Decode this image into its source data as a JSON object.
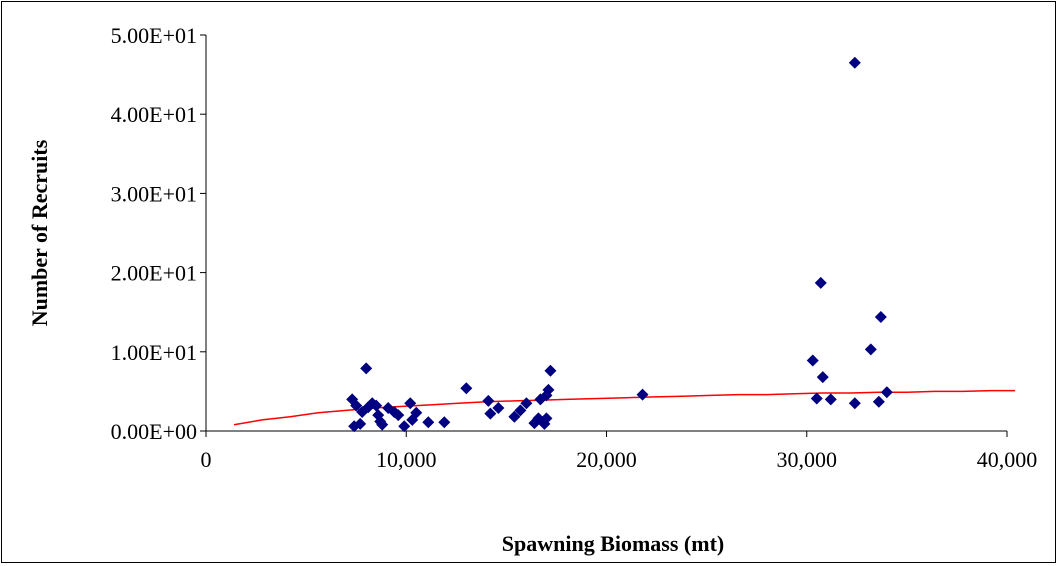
{
  "chart_data": {
    "type": "scatter",
    "title": "",
    "xlabel": "Spawning Biomass (mt)",
    "ylabel": "Number of Recruits",
    "xlim": [
      0,
      40000
    ],
    "ylim": [
      0,
      50
    ],
    "x_ticks": [
      0,
      10000,
      20000,
      30000,
      40000
    ],
    "x_tick_labels": [
      "0",
      "10,000",
      "20,000",
      "30,000",
      "40,000"
    ],
    "y_ticks": [
      0,
      10,
      20,
      30,
      40,
      50
    ],
    "y_tick_labels": [
      "0.00E+00",
      "1.00E+01",
      "2.00E+01",
      "3.00E+01",
      "4.00E+01",
      "5.00E+01"
    ],
    "grid": false,
    "legend": "none",
    "colors": {
      "points": "#000080",
      "curve": "#ff0000",
      "axis": "#000000"
    },
    "series": [
      {
        "type": "scatter",
        "marker": "diamond",
        "points": [
          [
            7300,
            4.0
          ],
          [
            7400,
            0.6
          ],
          [
            7500,
            3.2
          ],
          [
            7700,
            0.9
          ],
          [
            7800,
            2.4
          ],
          [
            8000,
            7.9
          ],
          [
            8100,
            3.0
          ],
          [
            8300,
            3.5
          ],
          [
            8500,
            3.2
          ],
          [
            8600,
            2.0
          ],
          [
            8700,
            1.2
          ],
          [
            8800,
            0.8
          ],
          [
            9100,
            2.9
          ],
          [
            9400,
            2.4
          ],
          [
            9600,
            2.0
          ],
          [
            9900,
            0.6
          ],
          [
            10200,
            3.5
          ],
          [
            10300,
            1.4
          ],
          [
            10500,
            2.3
          ],
          [
            11100,
            1.1
          ],
          [
            11900,
            1.1
          ],
          [
            13000,
            5.4
          ],
          [
            14100,
            3.8
          ],
          [
            14200,
            2.2
          ],
          [
            14600,
            2.9
          ],
          [
            15400,
            1.8
          ],
          [
            15700,
            2.6
          ],
          [
            16000,
            3.5
          ],
          [
            16400,
            1.0
          ],
          [
            16600,
            1.6
          ],
          [
            16700,
            4.0
          ],
          [
            16900,
            0.9
          ],
          [
            17000,
            4.5
          ],
          [
            17000,
            1.6
          ],
          [
            17100,
            5.2
          ],
          [
            17200,
            7.6
          ],
          [
            21800,
            4.6
          ],
          [
            30300,
            8.9
          ],
          [
            30500,
            4.1
          ],
          [
            30700,
            18.7
          ],
          [
            30800,
            6.8
          ],
          [
            31200,
            4.0
          ],
          [
            32400,
            46.5
          ],
          [
            32400,
            3.5
          ],
          [
            33200,
            10.3
          ],
          [
            33600,
            3.7
          ],
          [
            33700,
            14.4
          ],
          [
            34000,
            4.9
          ]
        ]
      },
      {
        "type": "line",
        "points": [
          [
            1400,
            0.8
          ],
          [
            2800,
            1.4
          ],
          [
            4200,
            1.8
          ],
          [
            5600,
            2.3
          ],
          [
            7000,
            2.6
          ],
          [
            8400,
            2.9
          ],
          [
            9800,
            3.1
          ],
          [
            11200,
            3.3
          ],
          [
            12600,
            3.5
          ],
          [
            14000,
            3.7
          ],
          [
            15400,
            3.8
          ],
          [
            16800,
            3.9
          ],
          [
            18200,
            4.0
          ],
          [
            19600,
            4.1
          ],
          [
            21000,
            4.2
          ],
          [
            22400,
            4.3
          ],
          [
            23800,
            4.4
          ],
          [
            25200,
            4.5
          ],
          [
            26600,
            4.6
          ],
          [
            28000,
            4.6
          ],
          [
            29400,
            4.7
          ],
          [
            30800,
            4.8
          ],
          [
            32200,
            4.8
          ],
          [
            33600,
            4.9
          ],
          [
            35000,
            4.9
          ],
          [
            36400,
            5.0
          ],
          [
            37800,
            5.0
          ],
          [
            39200,
            5.1
          ],
          [
            40400,
            5.1
          ]
        ]
      }
    ]
  }
}
